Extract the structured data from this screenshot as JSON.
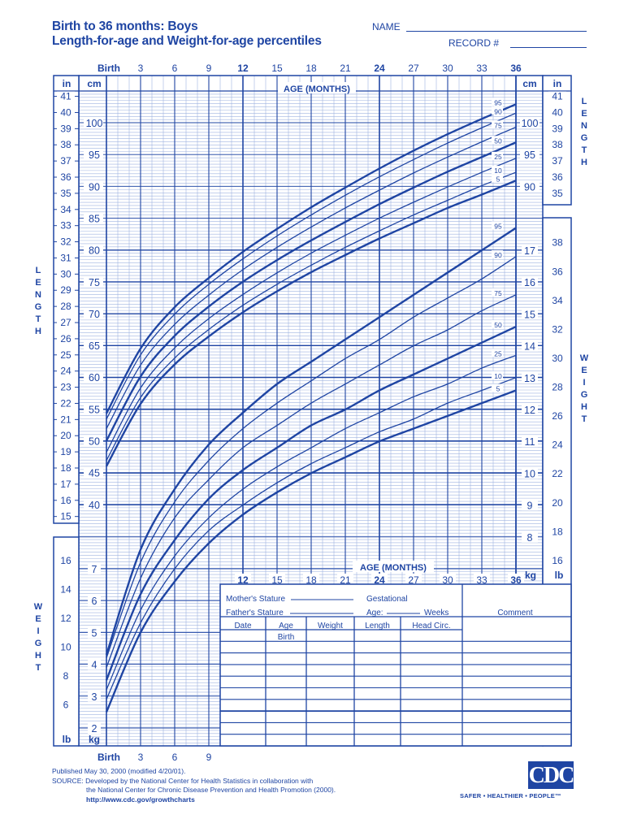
{
  "header": {
    "title_line1": "Birth to 36 months: Boys",
    "title_line2": "Length-for-age and Weight-for-age percentiles",
    "name_label": "NAME",
    "record_label": "RECORD #"
  },
  "axes": {
    "top_age_ticks": [
      "Birth",
      "3",
      "6",
      "9",
      "12",
      "15",
      "18",
      "21",
      "24",
      "27",
      "30",
      "33",
      "36"
    ],
    "bold_age_ticks": [
      "Birth",
      "12",
      "24",
      "36"
    ],
    "age_label": "AGE (MONTHS)",
    "mid_age_ticks": [
      "12",
      "15",
      "18",
      "21",
      "24",
      "27",
      "30",
      "33",
      "36"
    ],
    "bottom_age_ticks": [
      "Birth",
      "3",
      "6",
      "9"
    ],
    "unit_in": "in",
    "unit_cm": "cm",
    "unit_kg": "kg",
    "unit_lb": "lb",
    "length_label": "LENGTH",
    "weight_label": "WEIGHT",
    "left_in_ticks": [
      15,
      16,
      17,
      18,
      19,
      20,
      21,
      22,
      23,
      24,
      25,
      26,
      27,
      28,
      29,
      30,
      31,
      32,
      33,
      34,
      35,
      36,
      37,
      38,
      39,
      40,
      41
    ],
    "left_cm_ticks": [
      40,
      45,
      50,
      55,
      60,
      65,
      70,
      75,
      80,
      85,
      90,
      95,
      100
    ],
    "right_cm_ticks": [
      90,
      95,
      100
    ],
    "right_in_ticks": [
      35,
      36,
      37,
      38,
      39,
      40,
      41
    ],
    "right_kg_ticks": [
      8,
      9,
      10,
      11,
      12,
      13,
      14,
      15,
      16,
      17
    ],
    "right_lb_ticks": [
      16,
      18,
      20,
      22,
      24,
      26,
      28,
      30,
      32,
      34,
      36,
      38
    ],
    "left_kg_ticks": [
      2,
      3,
      4,
      5,
      6,
      7
    ],
    "left_lb_ticks": [
      6,
      8,
      10,
      12,
      14,
      16
    ]
  },
  "chart_data": [
    {
      "type": "line",
      "title": "Length-for-age percentiles, Boys, Birth to 36 months",
      "xlabel": "AGE (MONTHS)",
      "ylabel": "LENGTH (cm)",
      "xlim": [
        0,
        36
      ],
      "ylim": [
        40,
        105
      ],
      "grid": true,
      "x": [
        0,
        3,
        6,
        9,
        12,
        15,
        18,
        21,
        24,
        27,
        30,
        33,
        36
      ],
      "series": [
        {
          "name": "95",
          "values": [
            54.3,
            64.5,
            71.0,
            75.6,
            79.7,
            83.3,
            86.7,
            89.8,
            92.8,
            95.6,
            98.2,
            100.6,
            102.9
          ]
        },
        {
          "name": "90",
          "values": [
            53.4,
            63.5,
            69.9,
            74.6,
            78.6,
            82.2,
            85.5,
            88.6,
            91.5,
            94.2,
            96.8,
            99.2,
            101.5
          ]
        },
        {
          "name": "75",
          "values": [
            51.9,
            61.9,
            68.3,
            72.9,
            76.9,
            80.4,
            83.6,
            86.6,
            89.4,
            92.1,
            94.6,
            97.0,
            99.3
          ]
        },
        {
          "name": "50",
          "values": [
            50.0,
            60.1,
            66.5,
            71.1,
            75.0,
            78.4,
            81.5,
            84.4,
            87.2,
            89.8,
            92.3,
            94.6,
            96.9
          ]
        },
        {
          "name": "25",
          "values": [
            48.2,
            58.3,
            64.6,
            69.2,
            73.0,
            76.4,
            79.5,
            82.3,
            85.0,
            87.5,
            89.9,
            92.2,
            94.4
          ]
        },
        {
          "name": "10",
          "values": [
            46.9,
            56.8,
            63.0,
            67.5,
            71.3,
            74.6,
            77.6,
            80.4,
            83.0,
            85.5,
            87.8,
            90.1,
            92.2
          ]
        },
        {
          "name": "5",
          "values": [
            46.0,
            55.8,
            62.0,
            66.4,
            70.2,
            73.5,
            76.5,
            79.2,
            81.8,
            84.2,
            86.6,
            88.7,
            90.9
          ]
        }
      ]
    },
    {
      "type": "line",
      "title": "Weight-for-age percentiles, Boys, Birth to 36 months",
      "xlabel": "AGE (MONTHS)",
      "ylabel": "WEIGHT (kg)",
      "xlim": [
        0,
        36
      ],
      "ylim": [
        1.5,
        18
      ],
      "grid": true,
      "x": [
        0,
        3,
        6,
        9,
        12,
        15,
        18,
        21,
        24,
        27,
        30,
        33,
        36
      ],
      "series": [
        {
          "name": "95",
          "values": [
            4.3,
            7.6,
            9.5,
            10.9,
            11.9,
            12.8,
            13.5,
            14.2,
            14.9,
            15.6,
            16.3,
            17.0,
            17.7
          ]
        },
        {
          "name": "90",
          "values": [
            4.2,
            7.2,
            9.1,
            10.4,
            11.4,
            12.2,
            12.9,
            13.6,
            14.2,
            14.9,
            15.5,
            16.1,
            16.8
          ]
        },
        {
          "name": "75",
          "values": [
            3.9,
            6.7,
            8.6,
            9.8,
            10.8,
            11.5,
            12.2,
            12.8,
            13.4,
            14.0,
            14.5,
            15.1,
            15.6
          ]
        },
        {
          "name": "50",
          "values": [
            3.5,
            6.2,
            7.9,
            9.2,
            10.1,
            10.8,
            11.5,
            12.0,
            12.6,
            13.1,
            13.6,
            14.1,
            14.6
          ]
        },
        {
          "name": "25",
          "values": [
            3.2,
            5.7,
            7.4,
            8.6,
            9.5,
            10.2,
            10.8,
            11.4,
            11.9,
            12.4,
            12.8,
            13.3,
            13.7
          ]
        },
        {
          "name": "10",
          "values": [
            2.9,
            5.3,
            7.0,
            8.2,
            9.0,
            9.7,
            10.3,
            10.8,
            11.3,
            11.7,
            12.2,
            12.6,
            13.0
          ]
        },
        {
          "name": "5",
          "values": [
            2.5,
            5.0,
            6.6,
            7.8,
            8.7,
            9.4,
            10.0,
            10.5,
            11.0,
            11.4,
            11.8,
            12.2,
            12.6
          ]
        }
      ]
    }
  ],
  "record_form": {
    "mothers_stature_label": "Mother's Stature",
    "fathers_stature_label": "Father's Stature",
    "gestational_label": "Gestational",
    "age_label": "Age:",
    "weeks_label": "Weeks",
    "comment_label": "Comment",
    "columns": [
      "Date",
      "Age",
      "Weight",
      "Length",
      "Head  Circ."
    ],
    "rows": [
      [
        "",
        "Birth",
        "",
        "",
        ""
      ],
      [
        "",
        "",
        "",
        "",
        ""
      ],
      [
        "",
        "",
        "",
        "",
        ""
      ],
      [
        "",
        "",
        "",
        "",
        ""
      ],
      [
        "",
        "",
        "",
        "",
        ""
      ],
      [
        "",
        "",
        "",
        "",
        ""
      ],
      [
        "",
        "",
        "",
        "",
        ""
      ],
      [
        "",
        "",
        "",
        "",
        ""
      ],
      [
        "",
        "",
        "",
        "",
        ""
      ]
    ]
  },
  "footer": {
    "published": "Published May 30, 2000 (modified 4/20/01).",
    "source_line1": "SOURCE: Developed by the National Center for Health Statistics in collaboration with",
    "source_line2": "the National Center for Chronic Disease Prevention and Health Promotion (2000).",
    "url": "http://www.cdc.gov/growthcharts",
    "logo_text": "CDC",
    "tagline": "SAFER • HEALTHIER • PEOPLE™"
  },
  "colors": {
    "ink": "#1f45a3",
    "grid_light": "#9fb3e0",
    "background": "#ffffff"
  }
}
